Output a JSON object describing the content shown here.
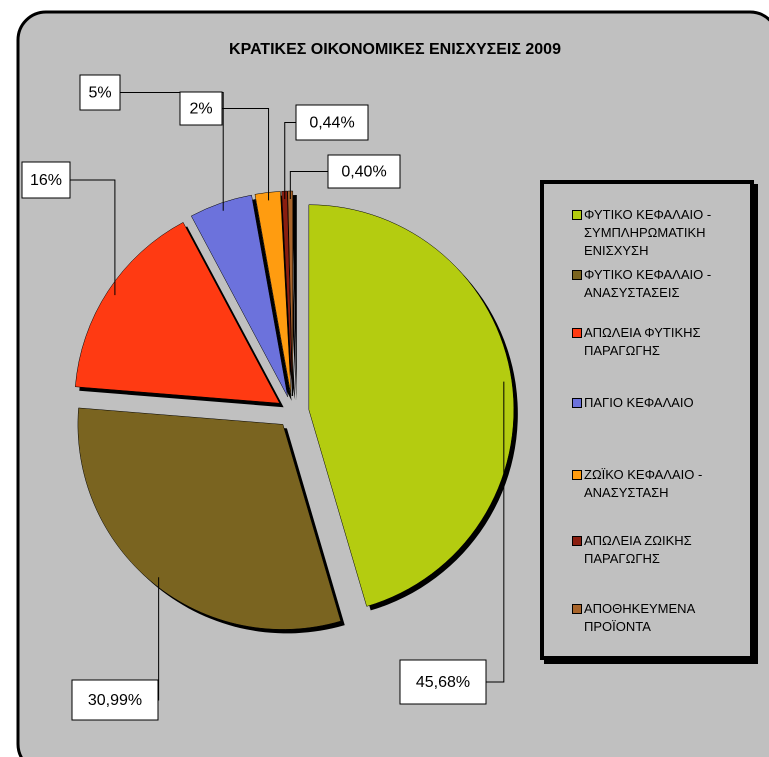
{
  "chart_data": {
    "type": "pie",
    "title": "ΚΡΑΤΙΚΕΣ ΟΙΚΟΝΟΜΙΚΕΣ ΕΝΙΣΧΥΣΕΙΣ 2009",
    "categories": [
      "ΦΥΤΙΚΟ ΚΕΦΑΛΑΙΟ - ΣΥΜΠΛΗΡΩΜΑΤΙΚΗ ΕΝΙΣΧΥΣΗ",
      "ΦΥΤΙΚΟ ΚΕΦΑΛΑΙΟ - ΑΝΑΣΥΣΤΑΣΕΙΣ",
      "ΑΠΩΛΕΙΑ ΦΥΤΙΚΗΣ ΠΑΡΑΓΩΓΗΣ",
      "ΠΑΓΙΟ ΚΕΦΑΛΑΙΟ",
      "ΖΩΪΚΟ ΚΕΦΑΛΑΙΟ - ΑΝΑΣΥΣΤΑΣΗ",
      "ΑΠΩΛΕΙΑ ΖΩΙΚΗΣ ΠΑΡΑΓΩΓΗΣ",
      "ΑΠΟΘΗΚΕΥΜΕΝΑ ΠΡΟΪΟΝΤΑ"
    ],
    "values": [
      45.68,
      30.99,
      16,
      5,
      2,
      0.44,
      0.4
    ],
    "value_labels": [
      "45,68%",
      "30,99%",
      "16%",
      "5%",
      "2%",
      "0,44%",
      "0,40%"
    ],
    "colors": [
      "#b4cc10",
      "#7a6420",
      "#ff3a12",
      "#6c72dc",
      "#ff9c10",
      "#8a1e10",
      "#a8642a"
    ],
    "legend": "right"
  }
}
